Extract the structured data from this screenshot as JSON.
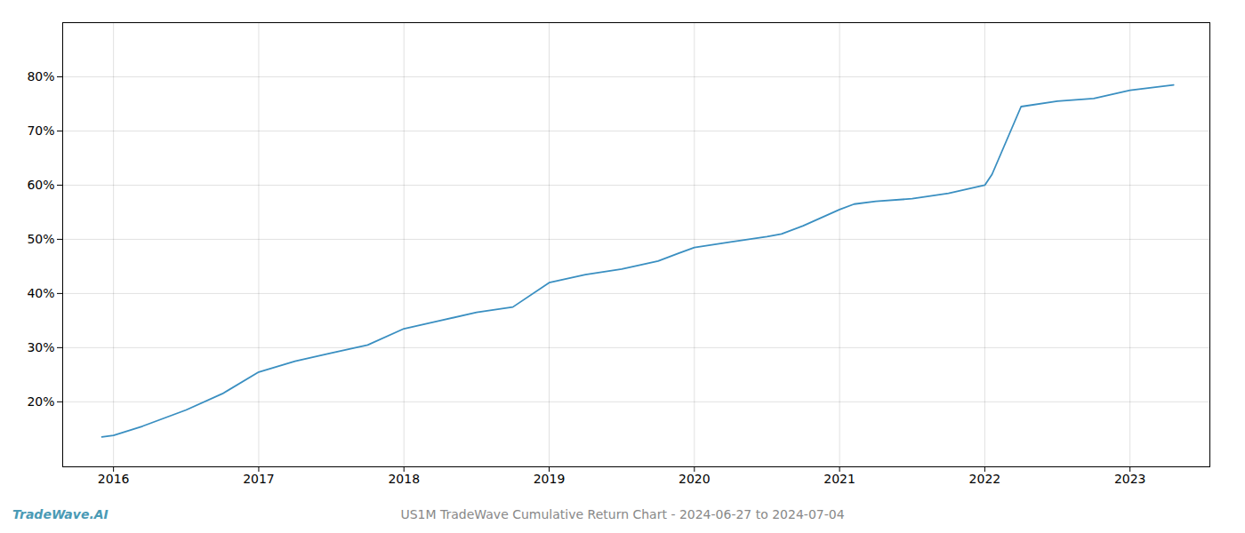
{
  "chart_data": {
    "type": "line",
    "x": [
      2015.92,
      2016.0,
      2016.2,
      2016.5,
      2016.75,
      2017.0,
      2017.25,
      2017.5,
      2017.75,
      2018.0,
      2018.25,
      2018.5,
      2018.75,
      2019.0,
      2019.25,
      2019.5,
      2019.75,
      2020.0,
      2020.25,
      2020.5,
      2020.6,
      2020.75,
      2021.0,
      2021.1,
      2021.25,
      2021.5,
      2021.75,
      2022.0,
      2022.05,
      2022.25,
      2022.5,
      2022.75,
      2023.0,
      2023.3
    ],
    "values": [
      13.5,
      13.8,
      15.5,
      18.5,
      21.5,
      25.5,
      27.5,
      29.0,
      30.5,
      33.5,
      35.0,
      36.5,
      37.5,
      42.0,
      43.5,
      44.5,
      46.0,
      48.5,
      49.5,
      50.5,
      51.0,
      52.5,
      55.5,
      56.5,
      57.0,
      57.5,
      58.5,
      60.0,
      62.0,
      74.5,
      75.5,
      76.0,
      77.5,
      78.5
    ],
    "color": "#3a8fc1",
    "xlim": [
      2015.65,
      2023.55
    ],
    "ylim": [
      8,
      90
    ],
    "xticks": [
      2016,
      2017,
      2018,
      2019,
      2020,
      2021,
      2022,
      2023
    ],
    "yticks": [
      {
        "value": 20,
        "label": "20%"
      },
      {
        "value": 30,
        "label": "30%"
      },
      {
        "value": 40,
        "label": "40%"
      },
      {
        "value": 50,
        "label": "50%"
      },
      {
        "value": 60,
        "label": "60%"
      },
      {
        "value": 70,
        "label": "70%"
      },
      {
        "value": 80,
        "label": "80%"
      }
    ],
    "grid": true,
    "annotations": [
      {
        "text": "TradeWave.AI",
        "color": "#4a9ab5"
      },
      {
        "text": "US1M TradeWave Cumulative Return Chart - 2024-06-27 to 2024-07-04",
        "color": "#888888"
      }
    ]
  }
}
